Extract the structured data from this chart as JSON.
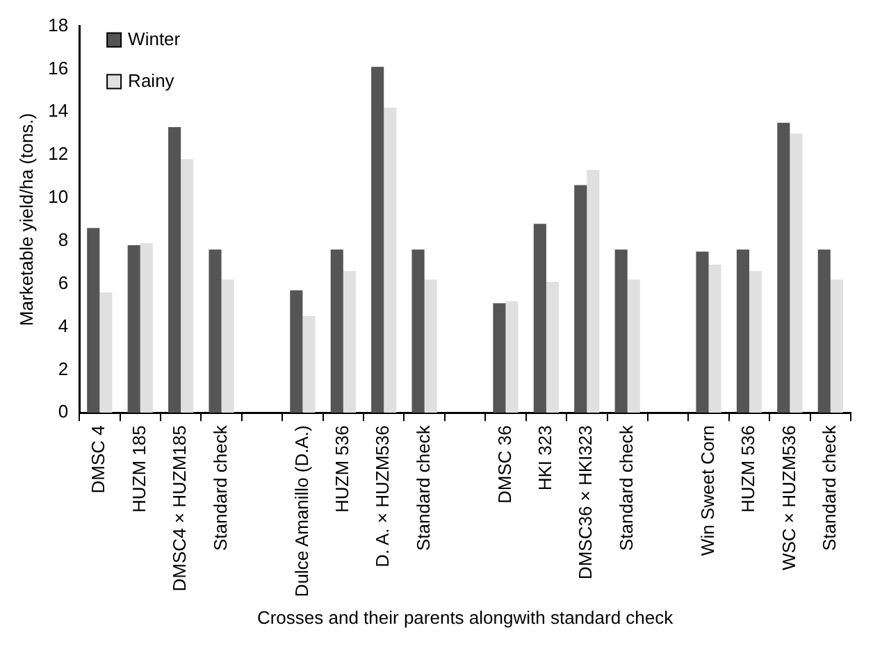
{
  "chart_data": {
    "type": "bar",
    "xlabel": "Crosses and their parents alongwith standard check",
    "ylabel": "Marketable yield/ha (tons.)",
    "categories": [
      "DMSC 4",
      "HUZM 185",
      "DMSC4 × HUZM185",
      "Standard check",
      null,
      "Dulce Amanillo (D.A.)",
      "HUZM 536",
      "D. A. × HUZM536",
      "Standard check",
      null,
      "DMSC 36",
      "HKI 323",
      "DMSC36 × HKI323",
      "Standard check",
      null,
      "Win Sweet Corn",
      "HUZM 536",
      "WSC × HUZM536",
      "Standard check"
    ],
    "series": [
      {
        "name": "Winter",
        "color": "#555555",
        "values": [
          8.6,
          7.8,
          13.3,
          7.6,
          null,
          5.7,
          7.6,
          16.1,
          7.6,
          null,
          5.1,
          8.8,
          10.6,
          7.6,
          null,
          7.5,
          7.6,
          13.5,
          7.6
        ]
      },
      {
        "name": "Rainy",
        "color": "#e0e0e0",
        "values": [
          5.6,
          7.9,
          11.8,
          6.2,
          null,
          4.5,
          6.6,
          14.2,
          6.2,
          null,
          5.2,
          6.1,
          11.3,
          6.2,
          null,
          6.9,
          6.6,
          13.0,
          6.2
        ]
      }
    ],
    "ylim": [
      0,
      18
    ],
    "yticks": [
      0,
      2,
      4,
      6,
      8,
      10,
      12,
      14,
      16,
      18
    ],
    "grid": false,
    "legend": "top left"
  }
}
